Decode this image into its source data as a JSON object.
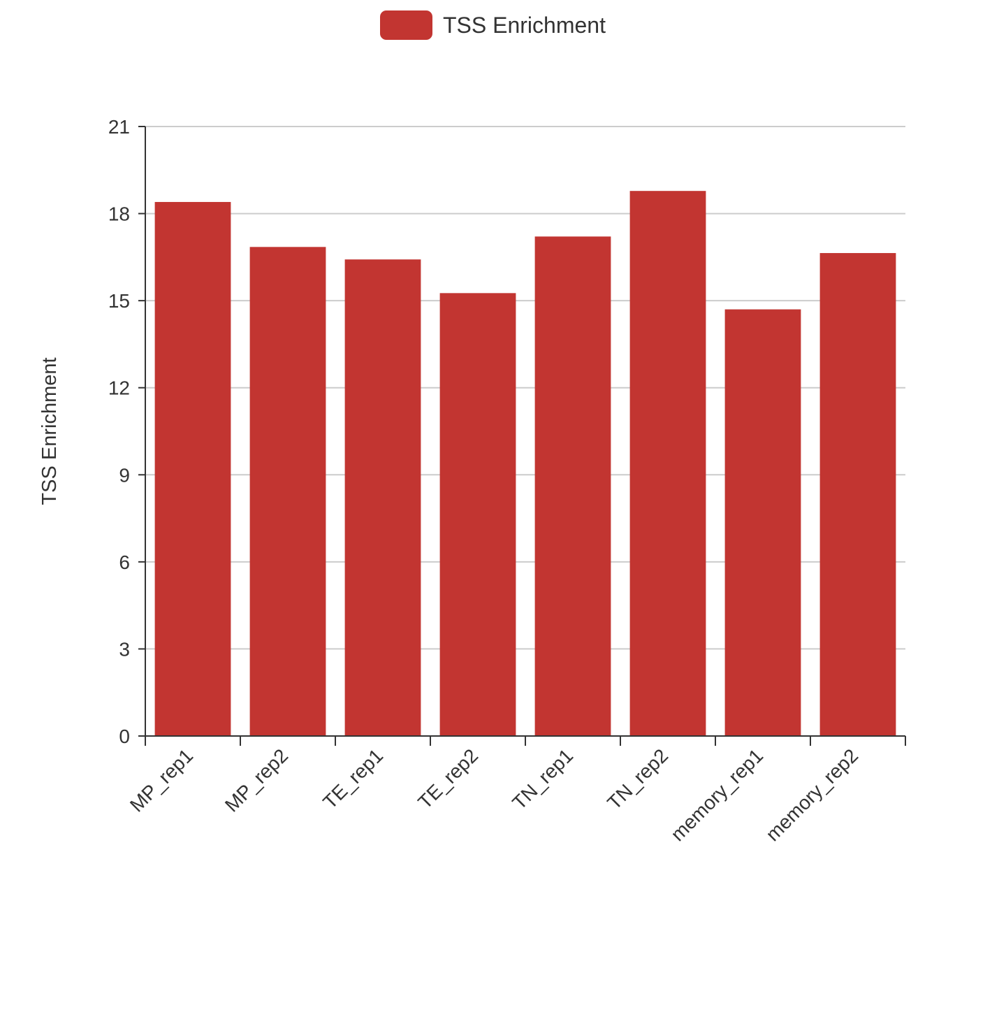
{
  "chart_data": {
    "type": "bar",
    "categories": [
      "MP_rep1",
      "MP_rep2",
      "TE_rep1",
      "TE_rep2",
      "TN_rep1",
      "TN_rep2",
      "memory_rep1",
      "memory_rep2"
    ],
    "series": [
      {
        "name": "TSS Enrichment",
        "values": [
          18.4,
          16.85,
          16.42,
          15.26,
          17.21,
          18.78,
          14.7,
          16.64
        ],
        "color": "#c23531"
      }
    ],
    "title": "",
    "xlabel": "",
    "ylabel": "TSS Enrichment",
    "ylim": [
      0,
      21
    ],
    "yticks": [
      0,
      3,
      6,
      9,
      12,
      15,
      18,
      21
    ],
    "grid": true,
    "legend_position": "top-center"
  }
}
